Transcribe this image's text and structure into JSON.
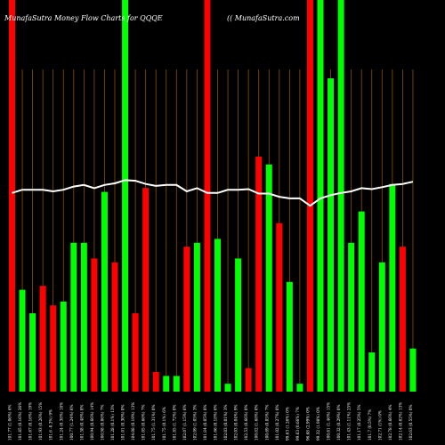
{
  "chart_data": {
    "type": "bar",
    "title": "MunafaSutra  Money Flow  Charts for QQQE",
    "subtitle": "(( MunafaSutra.com",
    "ylim": [
      0,
      100
    ],
    "colors": {
      "up": "#00ff00",
      "down": "#ff0000",
      "grid": "#8a5200",
      "line": "#ffffff",
      "background": "#000000",
      "text": "#ffffff"
    },
    "bars": [
      {
        "dir": "down",
        "value": 100,
        "label": "101.77 (1.06%) 6%"
      },
      {
        "dir": "up",
        "value": 26,
        "label": "101.85 (0.16%) 26%"
      },
      {
        "dir": "up",
        "value": 20,
        "label": "101.67 (0.16%) 19%"
      },
      {
        "dir": "down",
        "value": 27,
        "label": "101.93 (0.26%) 15%"
      },
      {
        "dir": "down",
        "value": 22,
        "label": "101.6  -0.3%) 9%"
      },
      {
        "dir": "up",
        "value": 23,
        "label": "101.24 (0.38%) 18%"
      },
      {
        "dir": "up",
        "value": 38,
        "label": "100.77 (1.24%) 6%"
      },
      {
        "dir": "up",
        "value": 38,
        "label": "101.58 (0.48%) 8%"
      },
      {
        "dir": "down",
        "value": 34,
        "label": "100.94 (0.66%) 14%"
      },
      {
        "dir": "up",
        "value": 51,
        "label": "100.98 (0.06%) 7%"
      },
      {
        "dir": "down",
        "value": 33,
        "label": "101.28 (0.1%) 13%"
      },
      {
        "dir": "up",
        "value": 100,
        "label": "101.01 (0.30%) 0%"
      },
      {
        "dir": "down",
        "value": 20,
        "label": "104.08 (0.19%) 13%"
      },
      {
        "dir": "down",
        "value": 52,
        "label": "101.05 (0.66%) 7%"
      },
      {
        "dir": "down",
        "value": 5,
        "label": "101.75 (1.31%) 0%"
      },
      {
        "dir": "up",
        "value": 4,
        "label": "101.75 (0.1%) 6%"
      },
      {
        "dir": "up",
        "value": 4,
        "label": "101.85 (1.72%) 0%"
      },
      {
        "dir": "down",
        "value": 37,
        "label": "102.07 (1.15%) 6%"
      },
      {
        "dir": "up",
        "value": 38,
        "label": "102.09 (1.05%) 3%"
      },
      {
        "dir": "down",
        "value": 100,
        "label": "101.84 (0.05%) 8%"
      },
      {
        "dir": "up",
        "value": 39,
        "label": "101.66 (0.18%) 6%"
      },
      {
        "dir": "up",
        "value": 2,
        "label": "102.03 (0.01%) 3%"
      },
      {
        "dir": "up",
        "value": 34,
        "label": "102.03 (0.04%) 9%"
      },
      {
        "dir": "down",
        "value": 6,
        "label": "102.53 (0.66%) 0%"
      },
      {
        "dir": "down",
        "value": 60,
        "label": "100.82 (1.68%) 0%"
      },
      {
        "dir": "up",
        "value": 58,
        "label": "100.69 (0.85%) 7%"
      },
      {
        "dir": "down",
        "value": 43,
        "label": "101.02 (0.27%) 0%"
      },
      {
        "dir": "up",
        "value": 28,
        "label": "99.63 (1.26%) 0%"
      },
      {
        "dir": "up",
        "value": 2,
        "label": "99.63 (0.66%) 7%"
      },
      {
        "dir": "down",
        "value": 100,
        "label": "96.68 (2.99%) 0%"
      },
      {
        "dir": "up",
        "value": 100,
        "label": "99.32 (1.98%) 0%"
      },
      {
        "dir": "up",
        "value": 80,
        "label": "100.61 (1.46%) 15%"
      },
      {
        "dir": "up",
        "value": 100,
        "label": "100.32 (0.29%) 0%"
      },
      {
        "dir": "up",
        "value": 38,
        "label": "101.43 (1.11%) 25%"
      },
      {
        "dir": "up",
        "value": 46,
        "label": "101.17 (0.25%) 5%"
      },
      {
        "dir": "up",
        "value": 10,
        "label": "101.7 (0.5%) 7%"
      },
      {
        "dir": "up",
        "value": 33,
        "label": "102.71 (1%) 0%"
      },
      {
        "dir": "up",
        "value": 53,
        "label": "102.78 (0.66%) 4%"
      },
      {
        "dir": "down",
        "value": 37,
        "label": "102.14 (0.62%) 13%"
      },
      {
        "dir": "up",
        "value": 11,
        "label": "102.63 (0.55%) 0%"
      }
    ],
    "line_values": [
      62,
      63,
      63,
      63,
      62.5,
      63,
      64,
      64.5,
      63.5,
      64.5,
      65,
      66,
      65.8,
      64.8,
      64.2,
      64.5,
      64.5,
      62.5,
      63.5,
      62,
      62,
      63,
      63,
      63.2,
      61.8,
      61.8,
      60.8,
      60.3,
      60.3,
      58,
      60.3,
      61.3,
      62,
      62.5,
      63.5,
      63.2,
      63.8,
      64.5,
      64.8,
      65.5
    ]
  }
}
